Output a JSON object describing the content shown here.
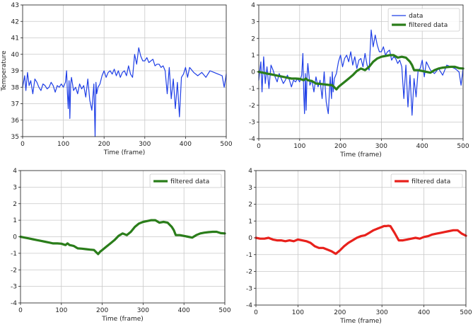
{
  "chart_data": [
    {
      "type": "line",
      "xlabel": "Time (frame)",
      "ylabel": "Temperature",
      "xlim": [
        0,
        500
      ],
      "ylim": [
        35,
        43
      ],
      "xticks": [
        "0",
        "100",
        "200",
        "300",
        "400",
        "500"
      ],
      "yticks": [
        "35",
        "36",
        "37",
        "38",
        "39",
        "40",
        "41",
        "42",
        "43"
      ],
      "grid": true,
      "series": [
        {
          "color": "#1f3fe6",
          "x": [
            0,
            5,
            8,
            12,
            16,
            20,
            25,
            30,
            35,
            40,
            45,
            50,
            55,
            60,
            65,
            70,
            75,
            80,
            85,
            90,
            95,
            100,
            105,
            108,
            110,
            112,
            114,
            116,
            118,
            120,
            125,
            130,
            135,
            140,
            145,
            150,
            155,
            160,
            165,
            170,
            175,
            178,
            180,
            182,
            185,
            190,
            195,
            200,
            205,
            210,
            215,
            220,
            225,
            230,
            235,
            240,
            245,
            250,
            255,
            260,
            265,
            270,
            275,
            280,
            285,
            290,
            295,
            300,
            305,
            310,
            315,
            320,
            325,
            330,
            335,
            340,
            345,
            350,
            355,
            360,
            365,
            370,
            375,
            380,
            385,
            390,
            395,
            400,
            405,
            410,
            420,
            430,
            440,
            450,
            460,
            470,
            480,
            490,
            495,
            500
          ],
          "y": [
            38.0,
            38.7,
            37.8,
            38.9,
            38.1,
            38.4,
            37.6,
            38.5,
            38.3,
            38.0,
            37.8,
            38.2,
            38.1,
            37.9,
            38.0,
            38.3,
            38.1,
            37.7,
            38.1,
            38.0,
            38.2,
            38.0,
            38.3,
            39.0,
            37.6,
            36.7,
            38.4,
            36.1,
            38.2,
            38.6,
            37.8,
            38.0,
            37.6,
            38.2,
            37.9,
            38.1,
            37.4,
            38.5,
            37.2,
            36.6,
            38.2,
            35.0,
            38.3,
            37.6,
            38.0,
            38.2,
            38.7,
            39.0,
            38.6,
            38.9,
            39.0,
            38.8,
            39.1,
            38.7,
            39.0,
            38.6,
            38.9,
            39.0,
            38.7,
            39.3,
            38.8,
            38.6,
            40.0,
            39.4,
            40.4,
            39.9,
            39.6,
            39.6,
            39.8,
            39.5,
            39.6,
            39.7,
            39.3,
            39.4,
            39.4,
            39.2,
            39.3,
            39.0,
            37.6,
            39.2,
            37.3,
            38.5,
            36.7,
            38.3,
            36.2,
            38.6,
            38.8,
            39.2,
            38.6,
            39.2,
            38.9,
            38.7,
            38.9,
            38.6,
            39.0,
            38.9,
            38.8,
            38.7,
            38.0,
            38.8
          ]
        }
      ]
    },
    {
      "type": "line",
      "xlabel": "Time (frame)",
      "ylabel": "",
      "xlim": [
        0,
        500
      ],
      "ylim": [
        -4,
        4
      ],
      "xticks": [
        "0",
        "100",
        "200",
        "300",
        "400",
        "500"
      ],
      "yticks": [
        "-4",
        "-3",
        "-2",
        "-1",
        "0",
        "1",
        "2",
        "3",
        "4"
      ],
      "grid": true,
      "legend": "upper-right",
      "series": [
        {
          "name": "data",
          "color": "#1f3fe6",
          "x": [
            0,
            5,
            8,
            12,
            16,
            20,
            25,
            30,
            35,
            40,
            45,
            50,
            55,
            60,
            65,
            70,
            75,
            80,
            85,
            90,
            95,
            100,
            105,
            108,
            110,
            112,
            114,
            116,
            118,
            120,
            125,
            130,
            135,
            140,
            145,
            150,
            155,
            160,
            165,
            170,
            175,
            178,
            180,
            182,
            185,
            190,
            195,
            200,
            205,
            210,
            215,
            220,
            225,
            230,
            235,
            240,
            245,
            250,
            255,
            260,
            265,
            270,
            275,
            280,
            285,
            290,
            295,
            300,
            305,
            310,
            315,
            320,
            325,
            330,
            335,
            340,
            345,
            350,
            355,
            360,
            365,
            370,
            375,
            380,
            385,
            390,
            395,
            400,
            405,
            410,
            420,
            430,
            440,
            450,
            460,
            470,
            480,
            490,
            495,
            500
          ],
          "y": [
            -0.5,
            0.6,
            -1.2,
            0.9,
            -0.7,
            0.3,
            -1.0,
            0.4,
            0.1,
            -0.3,
            -0.6,
            -0.1,
            -0.4,
            -0.7,
            -0.5,
            -0.2,
            -0.5,
            -0.9,
            -0.5,
            -0.6,
            -0.4,
            -0.6,
            -0.2,
            1.1,
            -1.3,
            -2.5,
            -0.1,
            -2.3,
            -0.3,
            0.5,
            -0.8,
            -0.5,
            -1.2,
            -0.3,
            -0.9,
            -0.5,
            -1.6,
            0.0,
            -1.8,
            -2.5,
            -0.3,
            -1.6,
            0.0,
            -1.2,
            -0.4,
            -0.1,
            0.6,
            1.0,
            0.3,
            0.8,
            1.0,
            0.6,
            1.2,
            0.4,
            0.9,
            0.2,
            0.7,
            0.8,
            0.3,
            1.1,
            0.4,
            0.1,
            2.5,
            1.5,
            2.2,
            1.6,
            1.2,
            1.2,
            1.5,
            1.0,
            1.2,
            1.3,
            0.7,
            0.9,
            0.8,
            0.5,
            0.7,
            0.3,
            -1.6,
            0.4,
            -2.1,
            -0.2,
            -2.6,
            -0.4,
            -1.5,
            0.1,
            0.2,
            0.7,
            -0.3,
            0.6,
            0.1,
            -0.1,
            0.2,
            -0.2,
            0.4,
            0.3,
            0.2,
            0.0,
            -0.8,
            0.2
          ]
        },
        {
          "name": "filtered data",
          "color": "#2a7d1a",
          "x": [
            0,
            10,
            20,
            30,
            40,
            50,
            60,
            70,
            80,
            90,
            100,
            110,
            115,
            120,
            130,
            140,
            150,
            160,
            170,
            180,
            190,
            195,
            200,
            210,
            220,
            230,
            240,
            250,
            260,
            270,
            280,
            290,
            300,
            310,
            320,
            330,
            340,
            350,
            360,
            370,
            375,
            380,
            390,
            400,
            410,
            420,
            430,
            440,
            450,
            460,
            470,
            480,
            490,
            500
          ],
          "y": [
            0.0,
            -0.05,
            -0.1,
            -0.15,
            -0.2,
            -0.25,
            -0.3,
            -0.35,
            -0.4,
            -0.4,
            -0.42,
            -0.5,
            -0.4,
            -0.5,
            -0.55,
            -0.7,
            -0.72,
            -0.75,
            -0.78,
            -0.8,
            -1.05,
            -0.9,
            -0.8,
            -0.6,
            -0.4,
            -0.2,
            0.05,
            0.2,
            0.1,
            0.3,
            0.6,
            0.8,
            0.9,
            0.95,
            1.0,
            1.0,
            0.85,
            0.9,
            0.85,
            0.6,
            0.4,
            0.1,
            0.1,
            0.05,
            0.0,
            -0.05,
            0.1,
            0.2,
            0.25,
            0.28,
            0.3,
            0.3,
            0.22,
            0.2
          ]
        }
      ]
    },
    {
      "type": "line",
      "xlabel": "Time (frame)",
      "ylabel": "",
      "xlim": [
        0,
        500
      ],
      "ylim": [
        -4,
        4
      ],
      "xticks": [
        "0",
        "100",
        "200",
        "300",
        "400",
        "500"
      ],
      "yticks": [
        "-4",
        "-3",
        "-2",
        "-1",
        "0",
        "1",
        "2",
        "3",
        "4"
      ],
      "grid": true,
      "legend": "upper-right",
      "series": [
        {
          "name": "filtered data",
          "color": "#2a7d1a",
          "x": [
            0,
            10,
            20,
            30,
            40,
            50,
            60,
            70,
            80,
            90,
            100,
            110,
            115,
            120,
            130,
            140,
            150,
            160,
            170,
            180,
            190,
            195,
            200,
            210,
            220,
            230,
            240,
            250,
            260,
            270,
            280,
            290,
            300,
            310,
            320,
            330,
            340,
            350,
            360,
            370,
            375,
            380,
            390,
            400,
            410,
            420,
            430,
            440,
            450,
            460,
            470,
            480,
            490,
            500
          ],
          "y": [
            0.0,
            -0.05,
            -0.1,
            -0.15,
            -0.2,
            -0.25,
            -0.3,
            -0.35,
            -0.4,
            -0.4,
            -0.42,
            -0.5,
            -0.4,
            -0.5,
            -0.55,
            -0.7,
            -0.72,
            -0.75,
            -0.78,
            -0.8,
            -1.05,
            -0.9,
            -0.8,
            -0.6,
            -0.4,
            -0.2,
            0.05,
            0.2,
            0.1,
            0.3,
            0.6,
            0.8,
            0.9,
            0.95,
            1.0,
            1.0,
            0.85,
            0.9,
            0.85,
            0.6,
            0.4,
            0.1,
            0.1,
            0.05,
            0.0,
            -0.05,
            0.1,
            0.2,
            0.25,
            0.28,
            0.3,
            0.3,
            0.22,
            0.2
          ]
        }
      ]
    },
    {
      "type": "line",
      "xlabel": "Time (frame)",
      "ylabel": "",
      "xlim": [
        0,
        500
      ],
      "ylim": [
        -4,
        4
      ],
      "xticks": [
        "0",
        "100",
        "200",
        "300",
        "400",
        "500"
      ],
      "yticks": [
        "-4",
        "-3",
        "-2",
        "-1",
        "0",
        "1",
        "2",
        "3",
        "4"
      ],
      "grid": true,
      "legend": "upper-right",
      "series": [
        {
          "name": "filtered data",
          "color": "#e8211c",
          "x": [
            0,
            10,
            20,
            30,
            40,
            50,
            60,
            70,
            80,
            90,
            100,
            110,
            120,
            130,
            140,
            150,
            160,
            170,
            180,
            190,
            200,
            210,
            220,
            230,
            240,
            250,
            260,
            270,
            280,
            290,
            300,
            305,
            310,
            315,
            320,
            330,
            340,
            350,
            360,
            370,
            380,
            390,
            400,
            410,
            420,
            430,
            440,
            450,
            460,
            470,
            475,
            480,
            490,
            500
          ],
          "y": [
            0.0,
            -0.05,
            -0.05,
            0.0,
            -0.1,
            -0.15,
            -0.15,
            -0.2,
            -0.15,
            -0.2,
            -0.1,
            -0.15,
            -0.2,
            -0.3,
            -0.5,
            -0.6,
            -0.6,
            -0.7,
            -0.8,
            -0.95,
            -0.75,
            -0.5,
            -0.3,
            -0.15,
            0.0,
            0.1,
            0.15,
            0.3,
            0.45,
            0.55,
            0.65,
            0.7,
            0.7,
            0.72,
            0.7,
            0.3,
            -0.15,
            -0.15,
            -0.1,
            -0.05,
            0.0,
            -0.05,
            0.05,
            0.1,
            0.2,
            0.25,
            0.3,
            0.35,
            0.4,
            0.45,
            0.45,
            0.45,
            0.25,
            0.12
          ]
        }
      ]
    }
  ]
}
